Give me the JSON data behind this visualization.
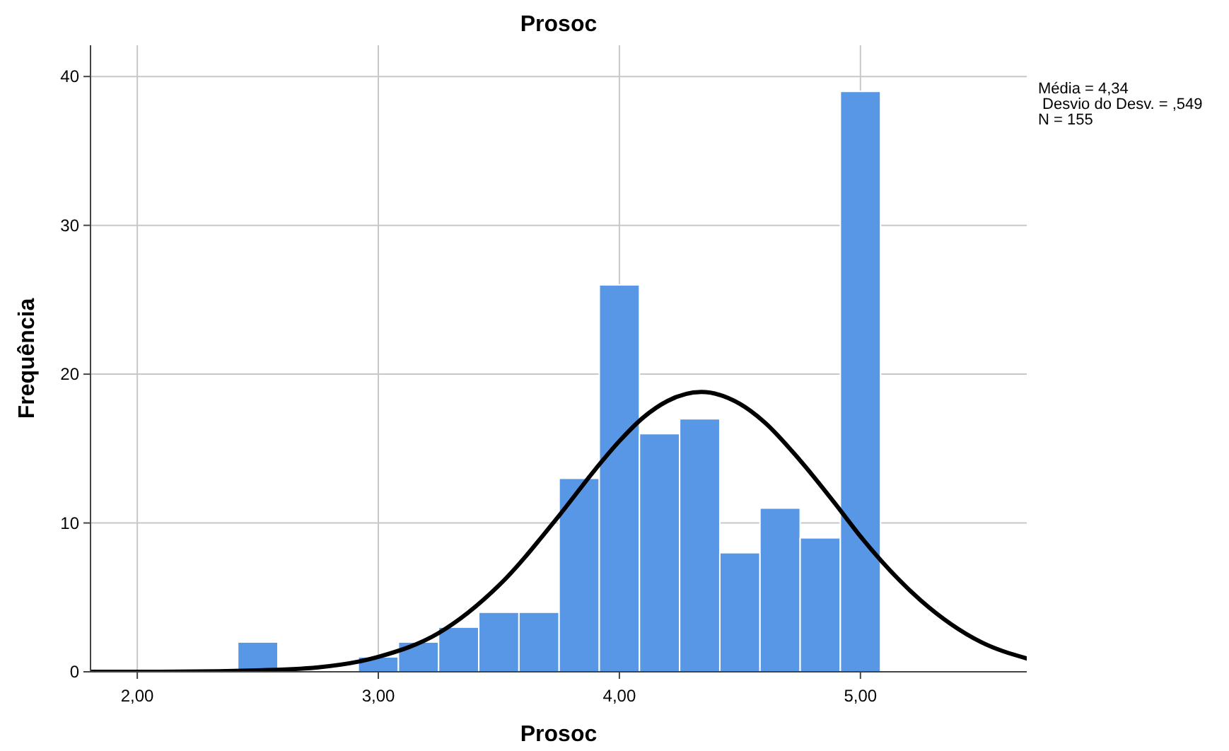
{
  "chart_data": {
    "type": "histogram",
    "title": "Prosoc",
    "xlabel": "Prosoc",
    "ylabel": "Frequência",
    "bins": [
      2.4167,
      2.5833,
      2.75,
      2.9167,
      3.0833,
      3.25,
      3.4167,
      3.5833,
      3.75,
      3.9167,
      4.0833,
      4.25,
      4.4167,
      4.5833,
      4.75,
      4.9167,
      5.0833
    ],
    "values": [
      2,
      0,
      0,
      1,
      2,
      3,
      4,
      4,
      13,
      26,
      16,
      17,
      8,
      11,
      9,
      39
    ],
    "color": "#5797e6",
    "series": [
      {
        "type": "line",
        "color": "#000000",
        "x": [
          1.806,
          2.0,
          2.5,
          2.75,
          3.0,
          3.25,
          3.5,
          3.75,
          3.9,
          4.0,
          4.1,
          4.2,
          4.34,
          4.5,
          4.6,
          4.75,
          4.9,
          5.0,
          5.25,
          5.5,
          5.69
        ],
        "values": [
          0,
          0,
          0.1,
          0.3,
          1.0,
          2.6,
          5.8,
          10.5,
          13.6,
          15.5,
          17.1,
          18.2,
          18.8,
          18.0,
          16.8,
          14.2,
          11.2,
          9.1,
          4.8,
          2.0,
          0.9
        ]
      }
    ],
    "xlim": [
      1.806,
      5.69
    ],
    "xticks": [
      {
        "value": 2,
        "label": "2,00"
      },
      {
        "value": 3,
        "label": "3,00"
      },
      {
        "value": 4,
        "label": "4,00"
      },
      {
        "value": 5,
        "label": "5,00"
      }
    ],
    "ylim": [
      0,
      42.1
    ],
    "yticks": [
      0,
      10,
      20,
      30,
      40
    ],
    "grid": true,
    "annotations": [
      "Média = 4,34",
      " Desvio do Desv. = ,549",
      "N = 155"
    ]
  }
}
